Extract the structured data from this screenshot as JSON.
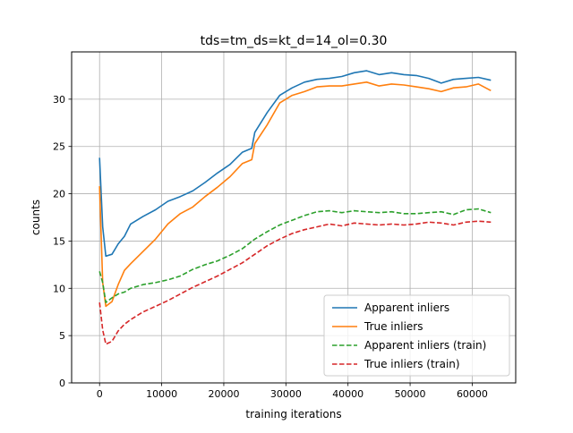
{
  "chart_data": {
    "type": "line",
    "title": "tds=tm_ds=kt_d=14_ol=0.30",
    "xlabel": "training iterations",
    "ylabel": "counts",
    "xlim": [
      -4500,
      67000
    ],
    "ylim": [
      0,
      35
    ],
    "xticks": [
      0,
      10000,
      20000,
      30000,
      40000,
      50000,
      60000
    ],
    "xtick_labels": [
      "0",
      "10000",
      "20000",
      "30000",
      "40000",
      "50000",
      "60000"
    ],
    "yticks": [
      0,
      5,
      10,
      15,
      20,
      25,
      30
    ],
    "ytick_labels": [
      "0",
      "5",
      "10",
      "15",
      "20",
      "25",
      "30"
    ],
    "grid": true,
    "legend_position": "lower-right",
    "series": [
      {
        "name": "Apparent inliers",
        "color": "#1f77b4",
        "style": "solid",
        "x": [
          0,
          500,
          1000,
          2000,
          3000,
          4000,
          5000,
          7000,
          9000,
          11000,
          13000,
          15000,
          17000,
          19000,
          21000,
          23000,
          24500,
          25000,
          27000,
          29000,
          31000,
          33000,
          35000,
          37000,
          39000,
          41000,
          43000,
          45000,
          47000,
          49000,
          51000,
          53000,
          55000,
          57000,
          59000,
          61000,
          63000
        ],
        "values": [
          23.8,
          16.5,
          13.4,
          13.6,
          14.7,
          15.5,
          16.8,
          17.6,
          18.3,
          19.2,
          19.7,
          20.3,
          21.2,
          22.2,
          23.1,
          24.4,
          24.8,
          26.5,
          28.6,
          30.4,
          31.2,
          31.8,
          32.1,
          32.2,
          32.4,
          32.8,
          33.0,
          32.6,
          32.8,
          32.6,
          32.5,
          32.2,
          31.7,
          32.1,
          32.2,
          32.3,
          32.0
        ]
      },
      {
        "name": "True inliers",
        "color": "#ff7f0e",
        "style": "solid",
        "x": [
          0,
          500,
          1000,
          2000,
          3000,
          4000,
          5000,
          7000,
          9000,
          11000,
          13000,
          15000,
          17000,
          19000,
          21000,
          23000,
          24500,
          25000,
          27000,
          29000,
          31000,
          33000,
          35000,
          37000,
          39000,
          41000,
          43000,
          45000,
          47000,
          49000,
          51000,
          53000,
          55000,
          57000,
          59000,
          61000,
          63000
        ],
        "values": [
          20.8,
          10.6,
          8.1,
          8.6,
          10.4,
          11.9,
          12.6,
          13.9,
          15.2,
          16.8,
          17.9,
          18.6,
          19.7,
          20.7,
          21.8,
          23.2,
          23.6,
          25.3,
          27.3,
          29.6,
          30.4,
          30.8,
          31.3,
          31.4,
          31.4,
          31.6,
          31.8,
          31.4,
          31.6,
          31.5,
          31.3,
          31.1,
          30.8,
          31.2,
          31.3,
          31.6,
          30.9
        ]
      },
      {
        "name": "Apparent inliers (train)",
        "color": "#2ca02c",
        "style": "dashed",
        "x": [
          0,
          500,
          1000,
          2000,
          3000,
          4000,
          5000,
          7000,
          9000,
          11000,
          13000,
          15000,
          17000,
          19000,
          21000,
          23000,
          25000,
          27000,
          29000,
          31000,
          33000,
          35000,
          37000,
          39000,
          41000,
          43000,
          45000,
          47000,
          49000,
          51000,
          53000,
          55000,
          57000,
          59000,
          61000,
          63000
        ],
        "values": [
          11.8,
          10.6,
          8.5,
          9.0,
          9.4,
          9.6,
          10.0,
          10.4,
          10.6,
          10.9,
          11.3,
          12.0,
          12.5,
          12.9,
          13.5,
          14.2,
          15.2,
          16.0,
          16.7,
          17.2,
          17.7,
          18.1,
          18.2,
          18.0,
          18.2,
          18.1,
          18.0,
          18.1,
          17.9,
          17.9,
          18.0,
          18.1,
          17.8,
          18.3,
          18.4,
          18.0
        ]
      },
      {
        "name": "True inliers (train)",
        "color": "#d62728",
        "style": "dashed",
        "x": [
          0,
          500,
          1000,
          2000,
          3000,
          4000,
          5000,
          7000,
          9000,
          11000,
          13000,
          15000,
          17000,
          19000,
          21000,
          23000,
          25000,
          27000,
          29000,
          31000,
          33000,
          35000,
          37000,
          39000,
          41000,
          43000,
          45000,
          47000,
          49000,
          51000,
          53000,
          55000,
          57000,
          59000,
          61000,
          63000
        ],
        "values": [
          8.5,
          5.6,
          4.1,
          4.4,
          5.5,
          6.2,
          6.7,
          7.5,
          8.1,
          8.7,
          9.4,
          10.1,
          10.7,
          11.3,
          12.0,
          12.7,
          13.6,
          14.5,
          15.2,
          15.8,
          16.2,
          16.5,
          16.8,
          16.6,
          16.9,
          16.8,
          16.7,
          16.8,
          16.7,
          16.8,
          17.0,
          16.9,
          16.7,
          17.0,
          17.1,
          17.0
        ]
      }
    ]
  }
}
